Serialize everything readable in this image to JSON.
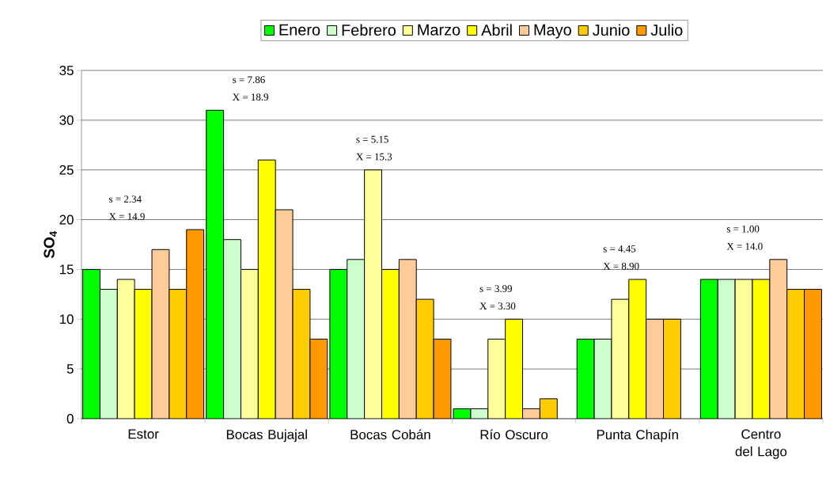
{
  "chart_data": {
    "type": "bar",
    "ylabel": "**SO$_{4}$**",
    "categories": [
      "Estor",
      "Bocas Bujajal",
      "Bocas Cobán",
      "Río Oscuro",
      "Punta Chapín",
      "Centro del Lago"
    ],
    "series": [
      {
        "name": "Enero",
        "color": "#00ff00",
        "values": [
          15,
          31,
          15,
          1,
          8,
          14
        ]
      },
      {
        "name": "Febrero",
        "color": "#ccffcc",
        "values": [
          13,
          18,
          16,
          1,
          8,
          14
        ]
      },
      {
        "name": "Marzo",
        "color": "#ffff99",
        "values": [
          14,
          15,
          25,
          8,
          12,
          14
        ]
      },
      {
        "name": "Abril",
        "color": "#ffff00",
        "values": [
          13,
          26,
          15,
          10,
          14,
          14
        ]
      },
      {
        "name": "Mayo",
        "color": "#ffcc99",
        "values": [
          17,
          21,
          16,
          1,
          10,
          16
        ]
      },
      {
        "name": "Junio",
        "color": "#ffcc00",
        "values": [
          13,
          13,
          12,
          2,
          10,
          13
        ]
      },
      {
        "name": "Julio",
        "color": "#ff9900",
        "values": [
          19,
          8,
          8,
          null,
          null,
          13
        ]
      }
    ],
    "ylim": [
      0,
      35
    ],
    "yticks": [
      0,
      5,
      10,
      15,
      20,
      25,
      30,
      35
    ],
    "grid": "y",
    "legend": "top",
    "annotations": [
      "s = 2.34",
      "X = 14.9",
      "s = 7.86",
      "X = 18.9",
      "s = 5.15",
      "X = 15.3",
      "s = 3.99",
      "X = 3.30",
      "s = 4.45",
      "X = 8.90",
      "s = 1.00",
      "X = 14.0"
    ]
  }
}
